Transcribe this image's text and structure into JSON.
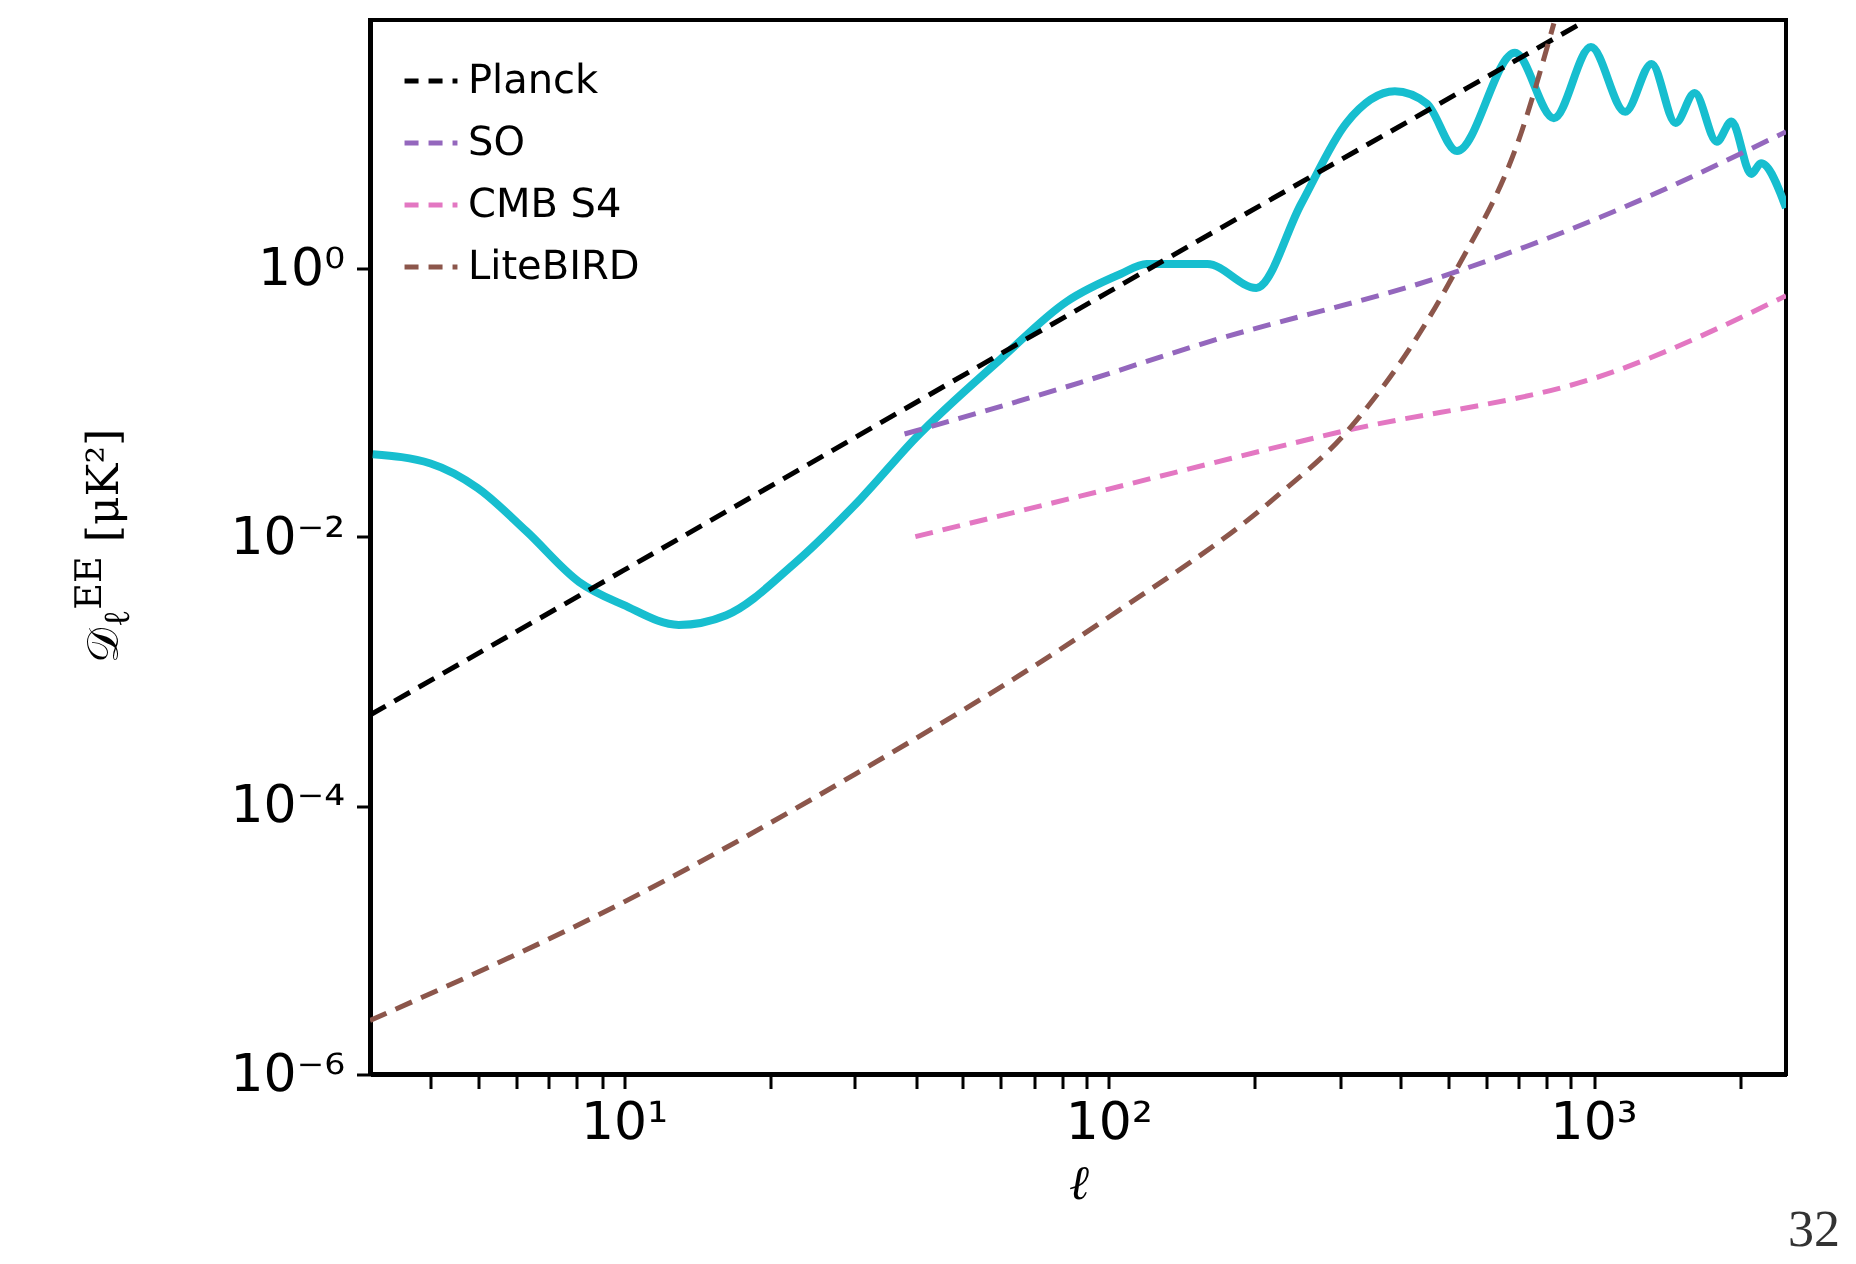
{
  "chart_data": {
    "type": "line",
    "xlabel": "ℓ",
    "ylabel": "𝒟$_{ℓ}$$^{EE}$ [μK²]",
    "log": "xy",
    "grid": false,
    "legend": "top left",
    "marker": "none",
    "xlim": [
      3,
      2500
    ],
    "ylim": [
      1e-06,
      70
    ],
    "xticks": [
      {
        "value": 4,
        "label": null
      },
      {
        "value": 5,
        "label": null
      },
      {
        "value": 6,
        "label": null
      },
      {
        "value": 7,
        "label": null
      },
      {
        "value": 8,
        "label": null
      },
      {
        "value": 9,
        "label": null
      },
      {
        "value": 10,
        "label": "10¹"
      },
      {
        "value": 20,
        "label": null
      },
      {
        "value": 30,
        "label": null
      },
      {
        "value": 40,
        "label": null
      },
      {
        "value": 50,
        "label": null
      },
      {
        "value": 60,
        "label": null
      },
      {
        "value": 70,
        "label": null
      },
      {
        "value": 80,
        "label": null
      },
      {
        "value": 90,
        "label": null
      },
      {
        "value": 100,
        "label": "10²"
      },
      {
        "value": 200,
        "label": null
      },
      {
        "value": 300,
        "label": null
      },
      {
        "value": 400,
        "label": null
      },
      {
        "value": 500,
        "label": null
      },
      {
        "value": 600,
        "label": null
      },
      {
        "value": 700,
        "label": null
      },
      {
        "value": 800,
        "label": null
      },
      {
        "value": 900,
        "label": null
      },
      {
        "value": 1000,
        "label": "10³"
      },
      {
        "value": 2000,
        "label": null
      }
    ],
    "yticks": [
      {
        "value": 1e-06,
        "label": "10⁻⁶"
      },
      {
        "value": 0.0001,
        "label": "10⁻⁴"
      },
      {
        "value": 0.01,
        "label": "10⁻²"
      },
      {
        "value": 1,
        "label": "10⁰"
      }
    ],
    "annotations": [
      "32"
    ],
    "series": [
      {
        "color": "#17becf",
        "line_style": "solid",
        "x": [
          3.04,
          4,
          5,
          6.3,
          8.1,
          10,
          13,
          16.3,
          22.4,
          30.8,
          40,
          60,
          82,
          106,
          120,
          160,
          202,
          250,
          310,
          390,
          454,
          524,
          690,
          830,
          990,
          1165,
          1320,
          1480,
          1620,
          1800,
          1930,
          2120,
          2220,
          2500
        ],
        "values": [
          0.041,
          0.035,
          0.023,
          0.011,
          0.0046,
          0.0031,
          0.0022,
          0.0026,
          0.0062,
          0.019,
          0.054,
          0.21,
          0.56,
          0.9,
          1.07,
          1.07,
          0.71,
          3,
          12,
          20.6,
          16.7,
          7.4,
          40,
          13,
          44,
          14.5,
          33,
          12,
          20,
          8.7,
          12.3,
          5,
          6,
          2.8
        ]
      },
      {
        "name": "Planck",
        "color": "#000000",
        "line_style": "dashed",
        "x": [
          3,
          10,
          100,
          944
        ],
        "values": [
          0.00047,
          0.0056,
          0.66,
          66
        ]
      },
      {
        "name": "SO",
        "color": "#9467bd",
        "line_style": "dashed",
        "x": [
          38,
          87.5,
          155,
          519,
          1040,
          2500
        ],
        "values": [
          0.058,
          0.14,
          0.27,
          0.93,
          2.4,
          10.3
        ]
      },
      {
        "name": "CMB S4",
        "color": "#e377c2",
        "line_style": "dashed",
        "x": [
          40,
          87.5,
          300,
          1110,
          2500
        ],
        "values": [
          0.01,
          0.02,
          0.06,
          0.17,
          0.62
        ]
      },
      {
        "name": "LiteBIRD",
        "color": "#8c564b",
        "line_style": "dashed",
        "x": [
          3,
          10,
          30,
          100,
          219,
          310,
          519,
          710,
          830
        ],
        "values": [
          2.5e-06,
          1.9e-05,
          0.00017,
          0.0025,
          0.019,
          0.06,
          0.93,
          10,
          66
        ]
      }
    ]
  }
}
